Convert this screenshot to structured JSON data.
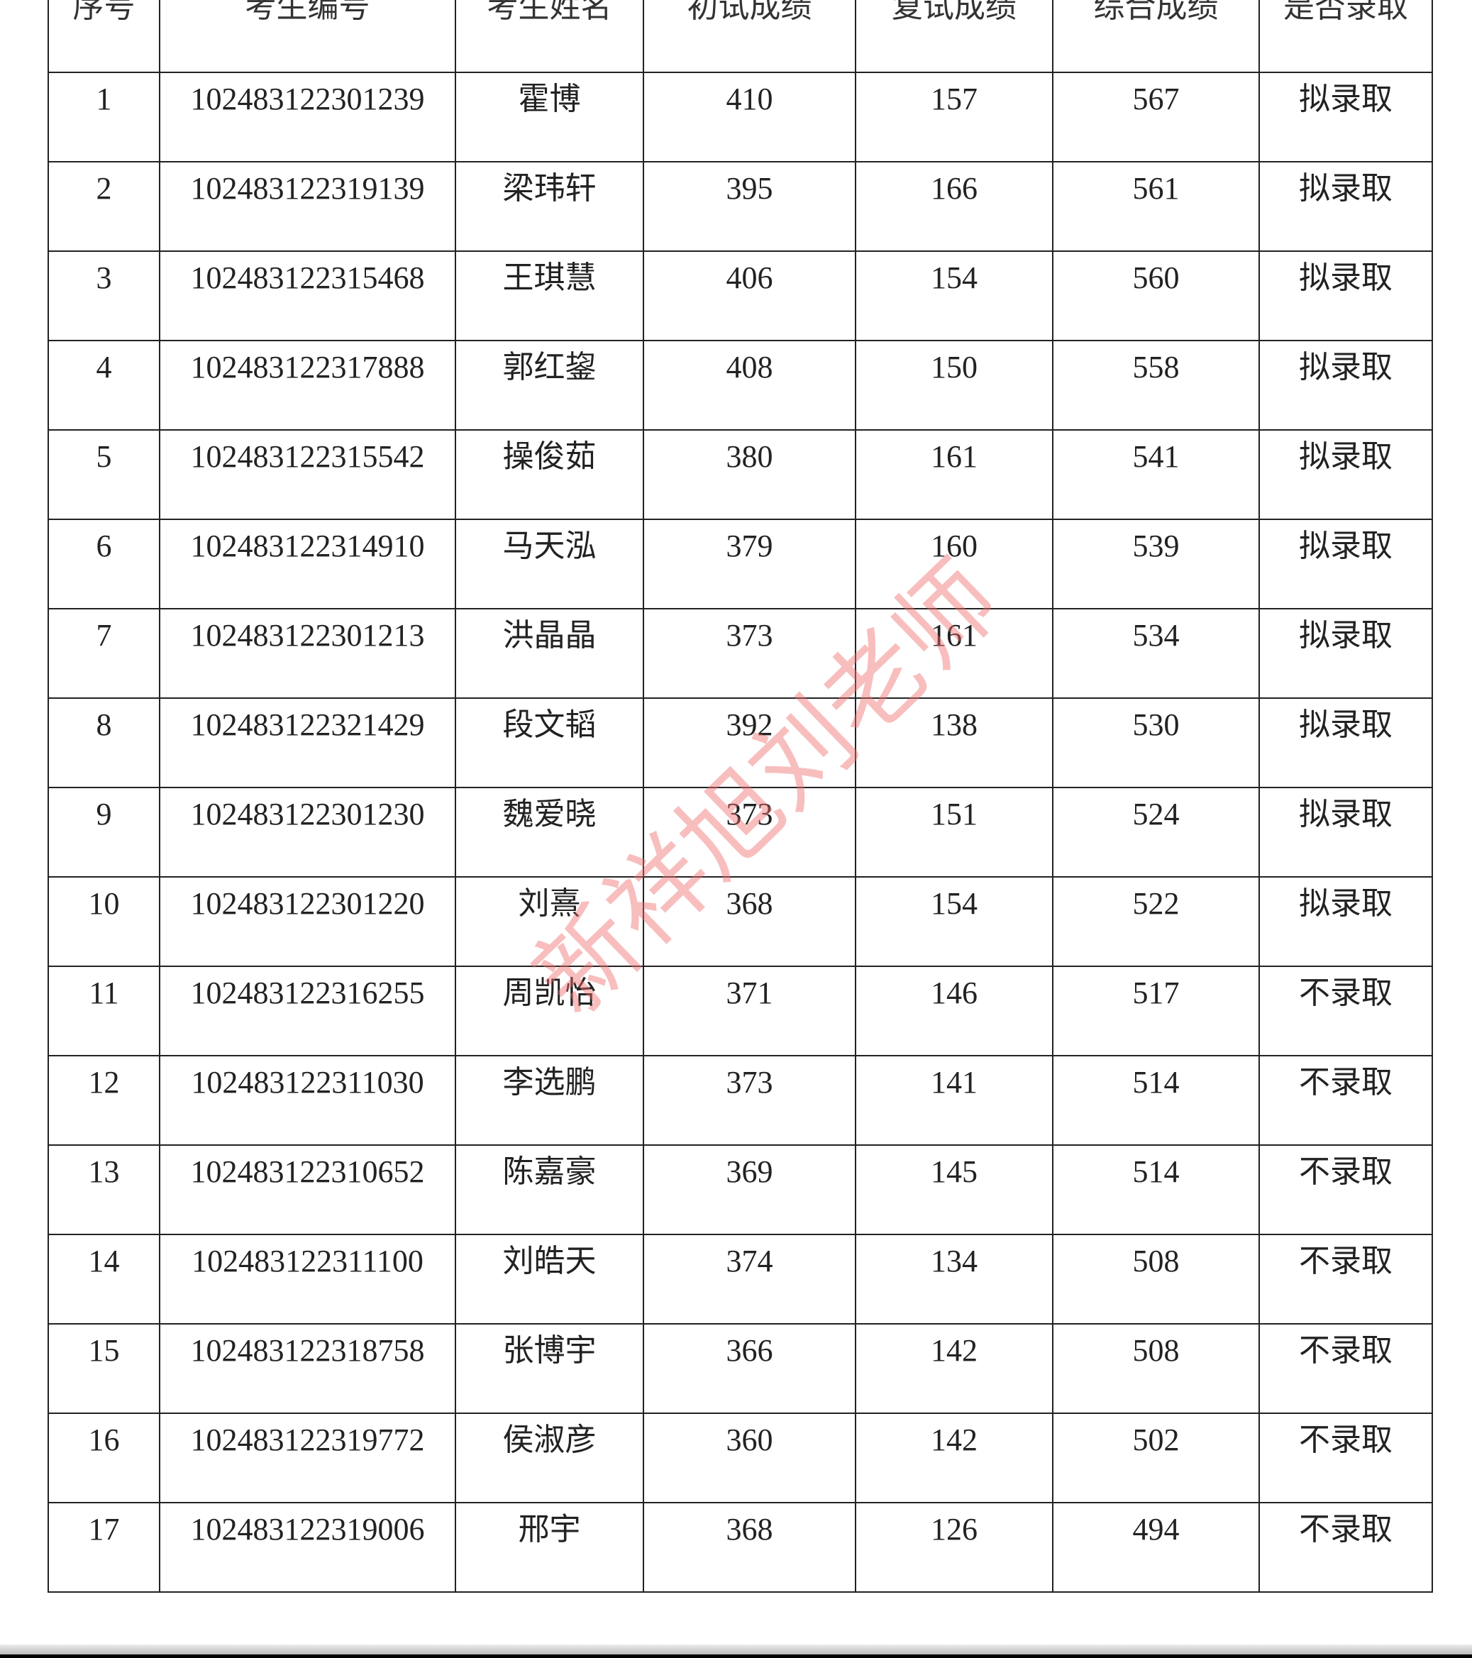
{
  "table": {
    "headers": [
      "序号",
      "考生编号",
      "考生姓名",
      "初试成绩",
      "复试成绩",
      "综合成绩",
      "是否录取"
    ],
    "rows": [
      [
        "1",
        "102483122301239",
        "霍博",
        "410",
        "157",
        "567",
        "拟录取"
      ],
      [
        "2",
        "102483122319139",
        "梁玮轩",
        "395",
        "166",
        "561",
        "拟录取"
      ],
      [
        "3",
        "102483122315468",
        "王琪慧",
        "406",
        "154",
        "560",
        "拟录取"
      ],
      [
        "4",
        "102483122317888",
        "郭红鋆",
        "408",
        "150",
        "558",
        "拟录取"
      ],
      [
        "5",
        "102483122315542",
        "操俊茹",
        "380",
        "161",
        "541",
        "拟录取"
      ],
      [
        "6",
        "102483122314910",
        "马天泓",
        "379",
        "160",
        "539",
        "拟录取"
      ],
      [
        "7",
        "102483122301213",
        "洪晶晶",
        "373",
        "161",
        "534",
        "拟录取"
      ],
      [
        "8",
        "102483122321429",
        "段文韬",
        "392",
        "138",
        "530",
        "拟录取"
      ],
      [
        "9",
        "102483122301230",
        "魏爱晓",
        "373",
        "151",
        "524",
        "拟录取"
      ],
      [
        "10",
        "102483122301220",
        "刘熹",
        "368",
        "154",
        "522",
        "拟录取"
      ],
      [
        "11",
        "102483122316255",
        "周凯怡",
        "371",
        "146",
        "517",
        "不录取"
      ],
      [
        "12",
        "102483122311030",
        "李选鹏",
        "373",
        "141",
        "514",
        "不录取"
      ],
      [
        "13",
        "102483122310652",
        "陈嘉豪",
        "369",
        "145",
        "514",
        "不录取"
      ],
      [
        "14",
        "102483122311100",
        "刘皓天",
        "374",
        "134",
        "508",
        "不录取"
      ],
      [
        "15",
        "102483122318758",
        "张博宇",
        "366",
        "142",
        "508",
        "不录取"
      ],
      [
        "16",
        "102483122319772",
        "侯淑彦",
        "360",
        "142",
        "502",
        "不录取"
      ],
      [
        "17",
        "102483122319006",
        "邢宇",
        "368",
        "126",
        "494",
        "不录取"
      ]
    ]
  },
  "watermark": "新祥旭刘老师",
  "colors": {
    "watermark": "#f06e6e",
    "grid": "#222222"
  }
}
